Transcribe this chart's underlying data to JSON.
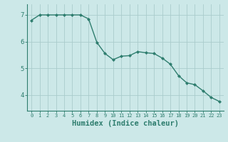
{
  "x": [
    0,
    1,
    2,
    3,
    4,
    5,
    6,
    7,
    8,
    9,
    10,
    11,
    12,
    13,
    14,
    15,
    16,
    17,
    18,
    19,
    20,
    21,
    22,
    23
  ],
  "y": [
    6.8,
    7.0,
    7.0,
    7.0,
    7.0,
    7.0,
    7.0,
    6.85,
    5.97,
    5.55,
    5.32,
    5.45,
    5.47,
    5.62,
    5.58,
    5.55,
    5.38,
    5.15,
    4.72,
    4.45,
    4.38,
    4.15,
    3.9,
    3.75
  ],
  "line_color": "#2e7d6e",
  "marker": "D",
  "marker_size": 2,
  "bg_color": "#cce8e8",
  "grid_color": "#aacccc",
  "tick_color": "#2e7d6e",
  "xlabel": "Humidex (Indice chaleur)",
  "xlabel_fontsize": 7.5,
  "yticks": [
    4,
    5,
    6,
    7
  ],
  "ylim": [
    3.4,
    7.4
  ],
  "xlim": [
    -0.5,
    23.5
  ],
  "xtick_fontsize": 5.0,
  "ytick_fontsize": 6.5
}
